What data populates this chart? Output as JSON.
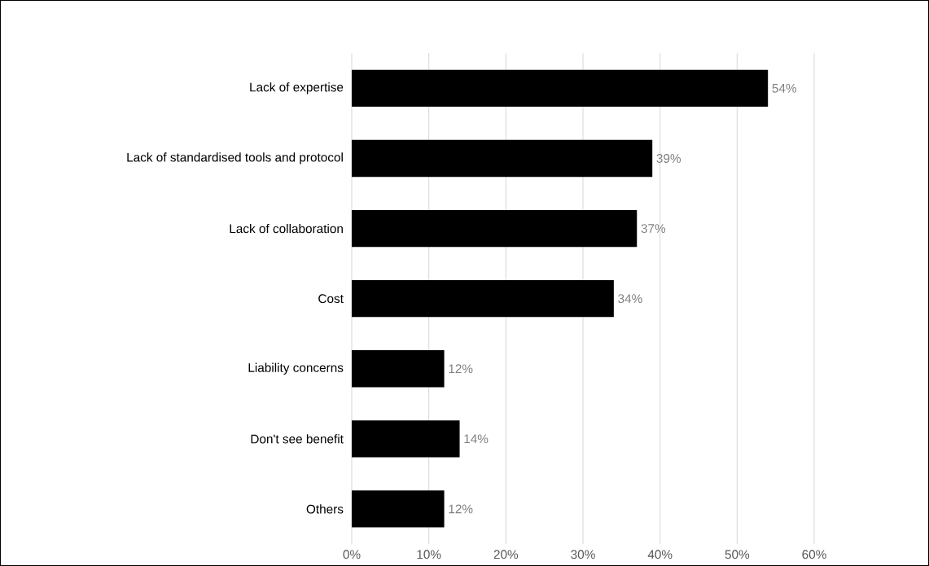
{
  "chart_data": {
    "type": "bar",
    "orientation": "horizontal",
    "categories": [
      "Lack of expertise",
      "Lack of standardised tools and protocol",
      "Lack of collaboration",
      "Cost",
      "Liability concerns",
      "Don't see benefit",
      "Others"
    ],
    "values": [
      54,
      39,
      37,
      34,
      12,
      14,
      12
    ],
    "value_labels": [
      "54%",
      "39%",
      "37%",
      "34%",
      "12%",
      "14%",
      "12%"
    ],
    "color": "#000000",
    "xlim": [
      0,
      60
    ],
    "xticks": [
      {
        "value": 0,
        "label": "0%"
      },
      {
        "value": 10,
        "label": "10%"
      },
      {
        "value": 20,
        "label": "20%"
      },
      {
        "value": 30,
        "label": "30%"
      },
      {
        "value": 40,
        "label": "40%"
      },
      {
        "value": 50,
        "label": "50%"
      },
      {
        "value": 60,
        "label": "60%"
      }
    ],
    "grid": "x"
  }
}
